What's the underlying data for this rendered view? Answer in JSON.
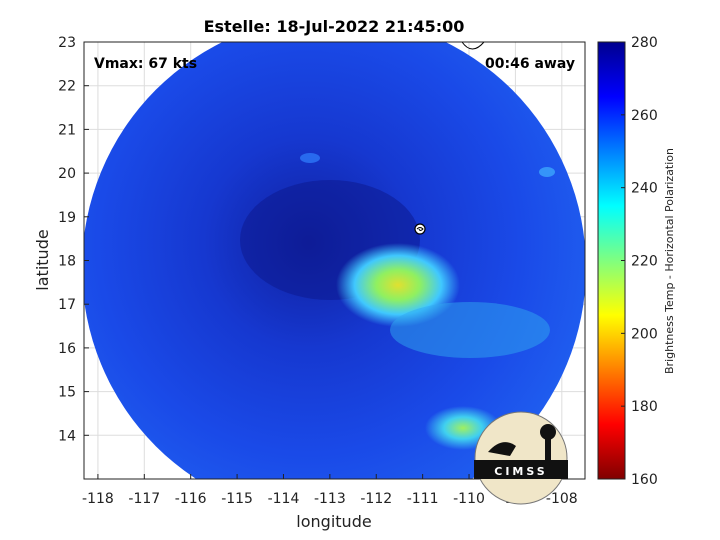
{
  "chart_data": {
    "type": "heatmap",
    "title": "Estelle: 18-Jul-2022 21:45:00",
    "xlabel": "longitude",
    "ylabel": "latitude",
    "xlim": [
      -118.3,
      -107.5
    ],
    "ylim": [
      13.0,
      23.0
    ],
    "x_ticks": [
      "-118",
      "-117",
      "-116",
      "-115",
      "-114",
      "-113",
      "-112",
      "-111",
      "-110",
      "-109",
      "-108"
    ],
    "y_ticks": [
      "14",
      "15",
      "16",
      "17",
      "18",
      "19",
      "20",
      "21",
      "22",
      "23"
    ],
    "colorbar": {
      "label": "Brightness Temp - Horizontal Polarization",
      "range": [
        160,
        280
      ],
      "ticks": [
        "160",
        "180",
        "200",
        "220",
        "240",
        "260",
        "280"
      ],
      "colormap": "jet"
    },
    "annotations": {
      "vmax": "Vmax: 67 kts",
      "time_offset": "00:46 away"
    },
    "storm_center": {
      "lon": -111.0,
      "lat": 18.8
    },
    "swath_center": {
      "lon": -112.9,
      "lat": 18.0
    },
    "features": [
      {
        "name": "warm eye region",
        "lon": -112.9,
        "lat": 18.3,
        "value": 270
      },
      {
        "name": "convective region",
        "lon": -111.6,
        "lat": 17.4,
        "value": 225
      },
      {
        "name": "rain band",
        "lon": -110.3,
        "lat": 14.4,
        "value": 230
      },
      {
        "name": "background",
        "value": 262
      }
    ]
  },
  "logo": {
    "text": "CIMSS"
  }
}
